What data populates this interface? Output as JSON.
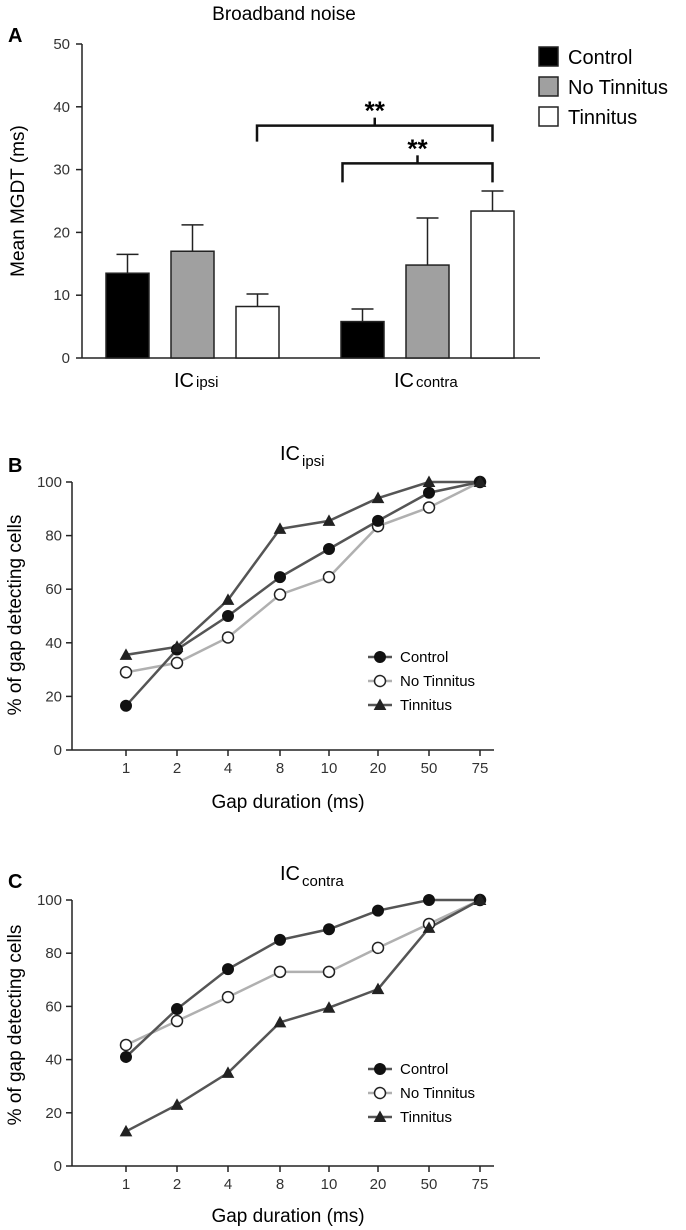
{
  "chart_data": [
    {
      "panel": "A",
      "type": "bar",
      "title": "Broadband noise",
      "ylabel": "Mean MGDT (ms)",
      "ylim": [
        0,
        50
      ],
      "yticks": [
        "0",
        "10",
        "20",
        "30",
        "40",
        "50"
      ],
      "groups": [
        {
          "base": "IC",
          "sub": "ipsi"
        },
        {
          "base": "IC",
          "sub": "contra"
        }
      ],
      "series": [
        {
          "name": "Control",
          "color": "#000000",
          "values": [
            13.5,
            5.8
          ],
          "errors": [
            3.0,
            2.0
          ]
        },
        {
          "name": "No Tinnitus",
          "color": "#a0a0a0",
          "values": [
            17.0,
            14.8
          ],
          "errors": [
            4.2,
            7.5
          ]
        },
        {
          "name": "Tinnitus",
          "color": "#ffffff",
          "values": [
            8.2,
            23.4
          ],
          "errors": [
            2.0,
            3.2
          ]
        }
      ],
      "significance": [
        {
          "label": "**",
          "from": "IC ipsi Tinnitus",
          "to": "IC contra Tinnitus",
          "height": 37
        },
        {
          "label": "**",
          "from": "IC contra Control",
          "to": "IC contra Tinnitus",
          "height": 31
        }
      ]
    },
    {
      "panel": "B",
      "type": "line",
      "title": {
        "base": "IC",
        "sub": "ipsi"
      },
      "xlabel": "Gap duration (ms)",
      "ylabel": "% of gap detecting cells",
      "ylim": [
        0,
        100
      ],
      "yticks": [
        "0",
        "20",
        "40",
        "60",
        "80",
        "100"
      ],
      "categories": [
        "1",
        "2",
        "4",
        "8",
        "10",
        "20",
        "50",
        "75"
      ],
      "series": [
        {
          "name": "Control",
          "marker": "filled-circle",
          "color": "#555555",
          "values": [
            16.5,
            37.5,
            50,
            64.5,
            75,
            85.5,
            96,
            100
          ]
        },
        {
          "name": "No Tinnitus",
          "marker": "open-circle",
          "color": "#b0b0b0",
          "values": [
            29,
            32.5,
            42,
            58,
            64.5,
            83.5,
            90.5,
            100
          ]
        },
        {
          "name": "Tinnitus",
          "marker": "triangle",
          "color": "#555555",
          "values": [
            35.5,
            38.5,
            56,
            82.5,
            85.5,
            94,
            100,
            100
          ]
        }
      ],
      "legend": "lower-right"
    },
    {
      "panel": "C",
      "type": "line",
      "title": {
        "base": "IC",
        "sub": "contra"
      },
      "xlabel": "Gap duration (ms)",
      "ylabel": "% of gap detecting cells",
      "ylim": [
        0,
        100
      ],
      "yticks": [
        "0",
        "20",
        "40",
        "60",
        "80",
        "100"
      ],
      "categories": [
        "1",
        "2",
        "4",
        "8",
        "10",
        "20",
        "50",
        "75"
      ],
      "series": [
        {
          "name": "Control",
          "marker": "filled-circle",
          "color": "#555555",
          "values": [
            41,
            59,
            74,
            85,
            89,
            96,
            100,
            100
          ]
        },
        {
          "name": "No Tinnitus",
          "marker": "open-circle",
          "color": "#b0b0b0",
          "values": [
            45.5,
            54.5,
            63.5,
            73,
            73,
            82,
            91,
            100
          ]
        },
        {
          "name": "Tinnitus",
          "marker": "triangle",
          "color": "#555555",
          "values": [
            13,
            23,
            35,
            54,
            59.5,
            66.5,
            89.5,
            100
          ]
        }
      ],
      "legend": "lower-right"
    }
  ]
}
